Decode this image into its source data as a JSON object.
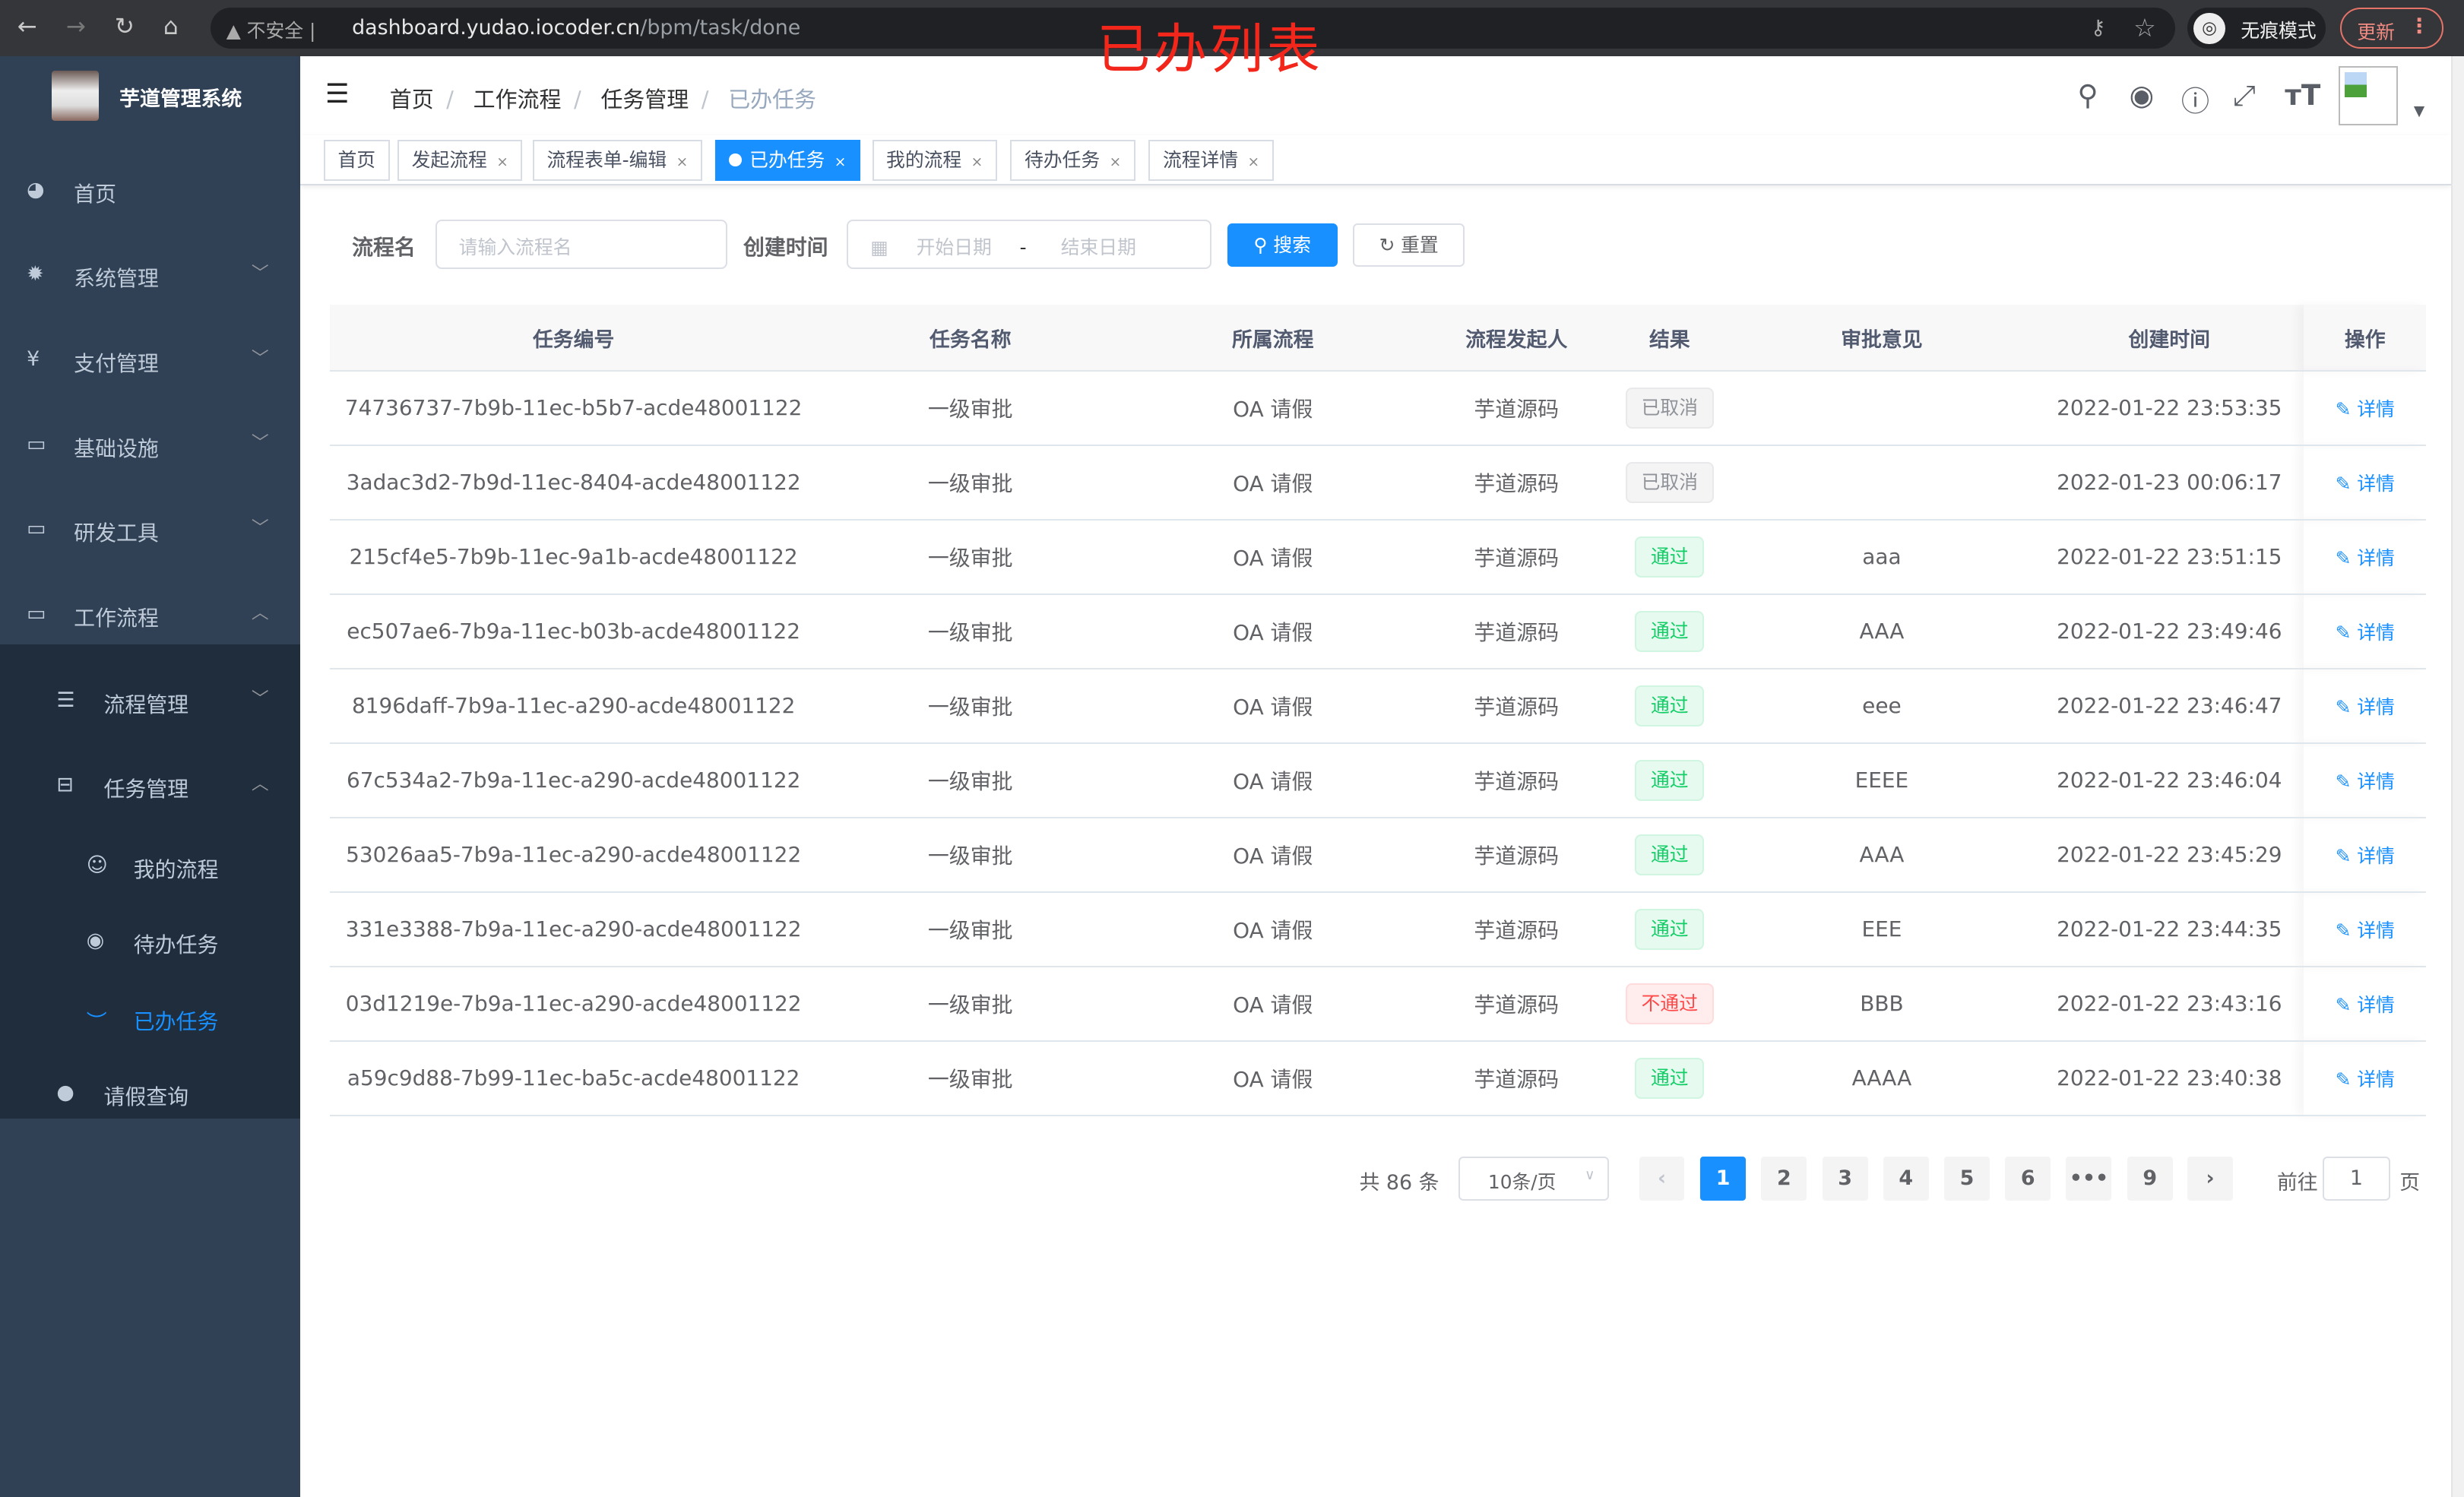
{
  "browser": {
    "insecure_label": "不安全",
    "url_host": "dashboard.yudao.iocoder.cn",
    "url_path": "/bpm/task/done",
    "incognito_label": "无痕模式",
    "update_label": "更新"
  },
  "overlay_title": "已办列表",
  "sidebar": {
    "brand": "芋道管理系统",
    "items": [
      {
        "label": "首页",
        "icon": "dashboard-icon"
      },
      {
        "label": "系统管理",
        "icon": "gear-icon"
      },
      {
        "label": "支付管理",
        "icon": "yen-icon"
      },
      {
        "label": "基础设施",
        "icon": "monitor-icon"
      },
      {
        "label": "研发工具",
        "icon": "toolbox-icon"
      },
      {
        "label": "工作流程",
        "icon": "toolbox-icon"
      },
      {
        "label": "流程管理",
        "icon": "list-icon"
      },
      {
        "label": "任务管理",
        "icon": "tasks-icon"
      },
      {
        "label": "我的流程",
        "icon": "people-icon"
      },
      {
        "label": "待办任务",
        "icon": "eye-icon"
      },
      {
        "label": "已办任务",
        "icon": "eye-closed-icon",
        "active": true
      },
      {
        "label": "请假查询",
        "icon": "user-icon"
      }
    ]
  },
  "breadcrumb": [
    "首页",
    "工作流程",
    "任务管理",
    "已办任务"
  ],
  "tags": [
    "首页",
    "发起流程",
    "流程表单-编辑",
    "已办任务",
    "我的流程",
    "待办任务",
    "流程详情"
  ],
  "search": {
    "name_label": "流程名",
    "name_placeholder": "请输入流程名",
    "time_label": "创建时间",
    "start_placeholder": "开始日期",
    "range_sep": "-",
    "end_placeholder": "结束日期",
    "search_btn": "搜索",
    "reset_btn": "重置"
  },
  "table": {
    "columns": [
      "任务编号",
      "任务名称",
      "所属流程",
      "流程发起人",
      "结果",
      "审批意见",
      "创建时间",
      "操作"
    ],
    "rows": [
      {
        "id": "74736737-7b9b-11ec-b5b7-acde48001122",
        "name": "一级审批",
        "process": "OA 请假",
        "starter": "芋道源码",
        "result": "已取消",
        "status": "cancel",
        "comment": "",
        "time": "2022-01-22 23:53:35"
      },
      {
        "id": "3adac3d2-7b9d-11ec-8404-acde48001122",
        "name": "一级审批",
        "process": "OA 请假",
        "starter": "芋道源码",
        "result": "已取消",
        "status": "cancel",
        "comment": "",
        "time": "2022-01-23 00:06:17"
      },
      {
        "id": "215cf4e5-7b9b-11ec-9a1b-acde48001122",
        "name": "一级审批",
        "process": "OA 请假",
        "starter": "芋道源码",
        "result": "通过",
        "status": "pass",
        "comment": "aaa",
        "time": "2022-01-22 23:51:15"
      },
      {
        "id": "ec507ae6-7b9a-11ec-b03b-acde48001122",
        "name": "一级审批",
        "process": "OA 请假",
        "starter": "芋道源码",
        "result": "通过",
        "status": "pass",
        "comment": "AAA",
        "time": "2022-01-22 23:49:46"
      },
      {
        "id": "8196daff-7b9a-11ec-a290-acde48001122",
        "name": "一级审批",
        "process": "OA 请假",
        "starter": "芋道源码",
        "result": "通过",
        "status": "pass",
        "comment": "eee",
        "time": "2022-01-22 23:46:47"
      },
      {
        "id": "67c534a2-7b9a-11ec-a290-acde48001122",
        "name": "一级审批",
        "process": "OA 请假",
        "starter": "芋道源码",
        "result": "通过",
        "status": "pass",
        "comment": "EEEE",
        "time": "2022-01-22 23:46:04"
      },
      {
        "id": "53026aa5-7b9a-11ec-a290-acde48001122",
        "name": "一级审批",
        "process": "OA 请假",
        "starter": "芋道源码",
        "result": "通过",
        "status": "pass",
        "comment": "AAA",
        "time": "2022-01-22 23:45:29"
      },
      {
        "id": "331e3388-7b9a-11ec-a290-acde48001122",
        "name": "一级审批",
        "process": "OA 请假",
        "starter": "芋道源码",
        "result": "通过",
        "status": "pass",
        "comment": "EEE",
        "time": "2022-01-22 23:44:35"
      },
      {
        "id": "03d1219e-7b9a-11ec-a290-acde48001122",
        "name": "一级审批",
        "process": "OA 请假",
        "starter": "芋道源码",
        "result": "不通过",
        "status": "fail",
        "comment": "BBB",
        "time": "2022-01-22 23:43:16"
      },
      {
        "id": "a59c9d88-7b99-11ec-ba5c-acde48001122",
        "name": "一级审批",
        "process": "OA 请假",
        "starter": "芋道源码",
        "result": "通过",
        "status": "pass",
        "comment": "AAAA",
        "time": "2022-01-22 23:40:38"
      }
    ],
    "action_label": "详情"
  },
  "pagination": {
    "total": "共 86 条",
    "page_size": "10条/页",
    "pages": [
      "1",
      "2",
      "3",
      "4",
      "5",
      "6",
      "•••",
      "9"
    ],
    "current": "1",
    "goto_label": "前往",
    "goto_value": "1",
    "page_suffix": "页"
  }
}
